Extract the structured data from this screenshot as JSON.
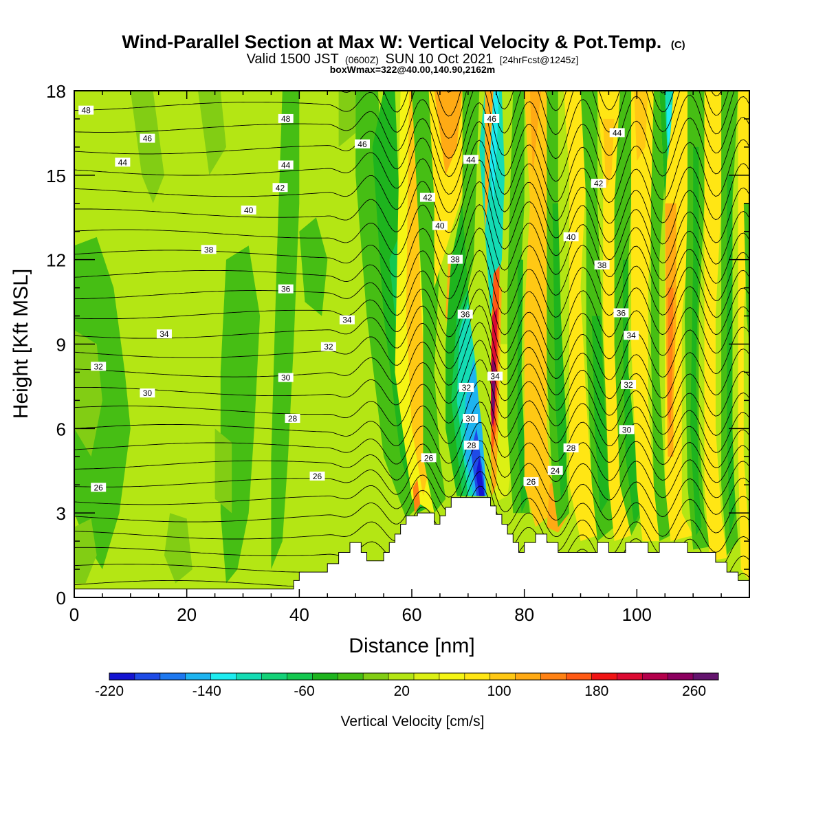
{
  "header": {
    "title_main": "Wind-Parallel Section at Max W: Vertical Velocity & Pot.Temp.",
    "title_mark": "(C)",
    "subtitle_a": "Valid 1500 JST",
    "subtitle_b": "(0600Z)",
    "subtitle_c": "SUN 10 Oct 2021",
    "subtitle_d": "[24hrFcst@1245z]",
    "subtitle_line3": "boxWmax=322@40.00,140.90,2162m"
  },
  "chart_data": {
    "type": "heatmap",
    "xlabel": "Distance [nm]",
    "ylabel": "Height [Kft MSL]",
    "xlim": [
      0,
      120
    ],
    "ylim": [
      0,
      18
    ],
    "x_ticks": [
      "0",
      "20",
      "40",
      "60",
      "80",
      "100"
    ],
    "y_ticks": [
      "0",
      "3",
      "6",
      "9",
      "12",
      "15",
      "18"
    ],
    "colorbar": {
      "label": "Vertical Velocity [cm/s]",
      "range": [
        -220,
        280
      ],
      "tick_labels": [
        "-220",
        "-140",
        "-60",
        "20",
        "100",
        "180",
        "260"
      ],
      "colors": [
        "#1414d2",
        "#1e4be6",
        "#1e78ef",
        "#1eb4f0",
        "#1eecf0",
        "#14dcb4",
        "#14d278",
        "#14c850",
        "#1eb41e",
        "#46be14",
        "#82cd14",
        "#b4e614",
        "#dcf014",
        "#f5f514",
        "#ffe614",
        "#ffc814",
        "#ffaa14",
        "#ff8214",
        "#ff5a14",
        "#f01414",
        "#dc0a32",
        "#b4004b",
        "#8c005f",
        "#64146e"
      ]
    },
    "theta_labels": [
      {
        "text": "48",
        "x": 2.1,
        "y": 17.3
      },
      {
        "text": "48",
        "x": 37.6,
        "y": 17.0
      },
      {
        "text": "46",
        "x": 13.0,
        "y": 16.3
      },
      {
        "text": "46",
        "x": 51.2,
        "y": 16.1
      },
      {
        "text": "46",
        "x": 74.2,
        "y": 17.0
      },
      {
        "text": "44",
        "x": 8.6,
        "y": 15.45
      },
      {
        "text": "44",
        "x": 37.6,
        "y": 15.35
      },
      {
        "text": "44",
        "x": 70.5,
        "y": 15.55
      },
      {
        "text": "44",
        "x": 96.5,
        "y": 16.5
      },
      {
        "text": "42",
        "x": 36.6,
        "y": 14.55
      },
      {
        "text": "42",
        "x": 62.8,
        "y": 14.2
      },
      {
        "text": "42",
        "x": 93.2,
        "y": 14.7
      },
      {
        "text": "40",
        "x": 31.0,
        "y": 13.75
      },
      {
        "text": "40",
        "x": 65.0,
        "y": 13.2
      },
      {
        "text": "40",
        "x": 88.3,
        "y": 12.8
      },
      {
        "text": "38",
        "x": 23.9,
        "y": 12.35
      },
      {
        "text": "38",
        "x": 67.7,
        "y": 12.0
      },
      {
        "text": "38",
        "x": 93.8,
        "y": 11.8
      },
      {
        "text": "36",
        "x": 37.6,
        "y": 10.95
      },
      {
        "text": "36",
        "x": 69.5,
        "y": 10.05
      },
      {
        "text": "36",
        "x": 97.2,
        "y": 10.1
      },
      {
        "text": "34",
        "x": 16.0,
        "y": 9.35
      },
      {
        "text": "34",
        "x": 48.5,
        "y": 9.85
      },
      {
        "text": "34",
        "x": 74.8,
        "y": 7.85
      },
      {
        "text": "34",
        "x": 99.0,
        "y": 9.3
      },
      {
        "text": "32",
        "x": 4.3,
        "y": 8.2
      },
      {
        "text": "32",
        "x": 45.2,
        "y": 8.9
      },
      {
        "text": "32",
        "x": 69.7,
        "y": 7.45
      },
      {
        "text": "32",
        "x": 98.5,
        "y": 7.55
      },
      {
        "text": "30",
        "x": 13.0,
        "y": 7.25
      },
      {
        "text": "30",
        "x": 37.6,
        "y": 7.8
      },
      {
        "text": "30",
        "x": 70.4,
        "y": 6.35
      },
      {
        "text": "30",
        "x": 98.2,
        "y": 5.95
      },
      {
        "text": "28",
        "x": 38.8,
        "y": 6.35
      },
      {
        "text": "28",
        "x": 70.6,
        "y": 5.4
      },
      {
        "text": "28",
        "x": 88.3,
        "y": 5.3
      },
      {
        "text": "26",
        "x": 4.3,
        "y": 3.9
      },
      {
        "text": "26",
        "x": 43.2,
        "y": 4.3
      },
      {
        "text": "26",
        "x": 63.0,
        "y": 4.95
      },
      {
        "text": "26",
        "x": 81.2,
        "y": 4.1
      },
      {
        "text": "24",
        "x": 85.5,
        "y": 4.5
      }
    ]
  }
}
